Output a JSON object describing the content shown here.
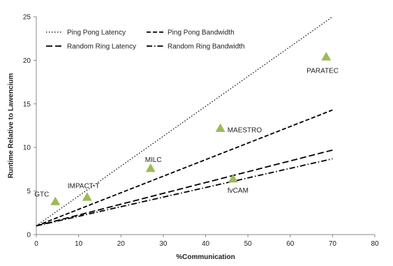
{
  "chart_data": {
    "type": "scatter",
    "xlabel": "%Communication",
    "ylabel": "Runtime Relative to Lawencium",
    "xlim": [
      0,
      80
    ],
    "ylim": [
      0,
      25
    ],
    "x_ticks": [
      "0",
      "10",
      "20",
      "30",
      "40",
      "50",
      "60",
      "70",
      "80"
    ],
    "y_ticks": [
      "0",
      "5",
      "10",
      "15",
      "20",
      "25"
    ],
    "legend_position": "top-left",
    "marker_color": "#9bbb59",
    "line_color": "#000000",
    "series": [
      {
        "name": "Ping Pong Latency",
        "kind": "line",
        "dash": "dotted",
        "x": [
          0,
          70
        ],
        "y": [
          1,
          25
        ]
      },
      {
        "name": "Ping Pong Bandwidth",
        "kind": "line",
        "dash": "dashed",
        "x": [
          0,
          70
        ],
        "y": [
          1,
          14.3
        ]
      },
      {
        "name": "Random Ring Latency",
        "kind": "line",
        "dash": "long-dashed",
        "x": [
          0,
          70
        ],
        "y": [
          1,
          9.7
        ]
      },
      {
        "name": "Random Ring Bandwidth",
        "kind": "line",
        "dash": "dash-dot",
        "x": [
          0,
          70
        ],
        "y": [
          1,
          8.7
        ]
      }
    ],
    "points": [
      {
        "label": "GTC",
        "x": 4.5,
        "y": 3.8
      },
      {
        "label": "IMPACT-T",
        "x": 12,
        "y": 4.3
      },
      {
        "label": "MILC",
        "x": 27,
        "y": 7.6
      },
      {
        "label": "MAESTRO",
        "x": 43.5,
        "y": 12.2
      },
      {
        "label": "fvCAM",
        "x": 46.5,
        "y": 6.4
      },
      {
        "label": "PARATEC",
        "x": 68.5,
        "y": 20.4
      }
    ]
  }
}
